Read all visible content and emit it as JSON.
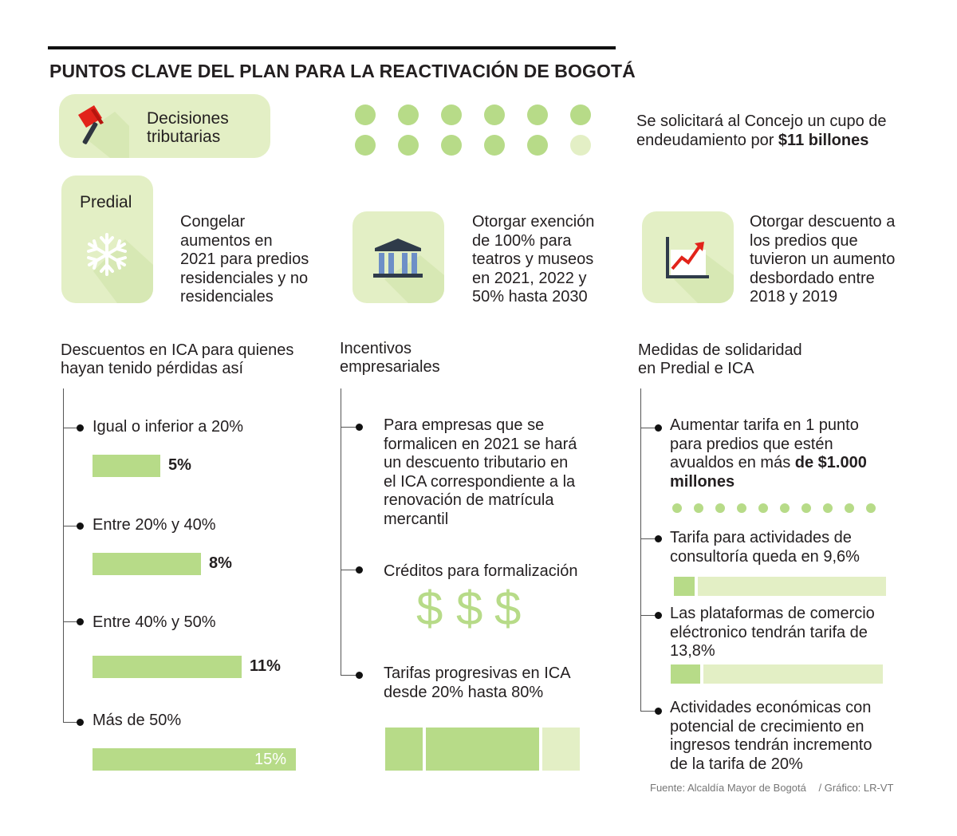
{
  "title": "PUNTOS CLAVE DEL PLAN PARA LA REACTIVACIÓN DE BOGOTÁ",
  "decisiones": {
    "line1": "Decisiones",
    "line2": "tributarias"
  },
  "endeudamiento": {
    "line1": "Se solicitará al Concejo un cupo de",
    "line2_prefix": "endeudamiento por ",
    "line2_bold": "$11 billones"
  },
  "predial": {
    "label": "Predial",
    "items": [
      {
        "lines": [
          "Congelar",
          "aumentos en",
          "2021 para predios",
          "residenciales y no",
          "residenciales"
        ]
      },
      {
        "lines": [
          "Otorgar exención",
          "de 100% para",
          "teatros y museos",
          "en 2021, 2022 y",
          "50% hasta 2030"
        ]
      },
      {
        "lines": [
          "Otorgar descuento a",
          "los predios que",
          "tuvieron un aumento",
          "desbordado entre",
          "2018 y 2019"
        ]
      }
    ]
  },
  "ica": {
    "heading": [
      "Descuentos en ICA para quienes",
      "hayan tenido pérdidas así"
    ],
    "items": [
      {
        "label": "Igual o inferior a 20%",
        "value_label": "5%"
      },
      {
        "label": "Entre 20% y 40%",
        "value_label": "8%"
      },
      {
        "label": "Entre 40% y 50%",
        "value_label": "11%"
      },
      {
        "label": "Más de 50%",
        "value_label": "15%"
      }
    ]
  },
  "incentivos": {
    "heading": [
      "Incentivos",
      "empresariales"
    ],
    "items": [
      {
        "lines": [
          "Para empresas que se",
          "formalicen en 2021 se hará",
          "un descuento tributario en",
          "el ICA correspondiente a la",
          "renovación de matrícula",
          "mercantil"
        ]
      },
      {
        "lines": [
          "Créditos para formalización"
        ]
      },
      {
        "lines": [
          "Tarifas progresivas en ICA",
          "desde 20% hasta 80%"
        ]
      }
    ],
    "dollar_sign": "$"
  },
  "solidaridad": {
    "heading": [
      "Medidas de solidaridad",
      "en Predial e ICA"
    ],
    "item1": {
      "lines": [
        "Aumentar tarifa en 1 punto",
        "para predios que estén"
      ],
      "line3_prefix": "avualdos en más ",
      "line3_bold": "de $1.000",
      "line4_bold": "millones"
    },
    "item2": {
      "lines": [
        "Tarifa para actividades de",
        "consultoría queda en 9,6%"
      ]
    },
    "item3": {
      "lines": [
        "Las plataformas de comercio",
        "eléctronico tendrán tarifa de",
        "13,8%"
      ]
    },
    "item4": {
      "lines": [
        "Actividades económicas con",
        "potencial de crecimiento en",
        "ingresos tendrán incremento",
        "de la tarifa de 20%"
      ]
    }
  },
  "source": "Fuente: Alcaldía Mayor de Bogotá",
  "credit": "/ Gráfico: LR-VT",
  "colors": {
    "green": "#b7db88",
    "pale_green": "#e3efc5",
    "red": "#e2231a"
  },
  "chart_data": [
    {
      "type": "bar",
      "title": "Descuentos en ICA para quienes hayan tenido pérdidas así",
      "categories": [
        "Igual o inferior a 20%",
        "Entre 20% y 40%",
        "Entre 40% y 50%",
        "Más de 50%"
      ],
      "values": [
        5,
        8,
        11,
        15
      ],
      "unit": "%"
    },
    {
      "type": "bar",
      "title": "Tarifas",
      "categories": [
        "Consultoría",
        "Comercio electrónico"
      ],
      "values": [
        9.6,
        13.8
      ],
      "unit": "%",
      "ylim": [
        0,
        100
      ]
    },
    {
      "type": "bar",
      "title": "Tarifas progresivas en ICA",
      "values": [
        20,
        80
      ],
      "unit": "%",
      "ylim": [
        0,
        100
      ]
    }
  ]
}
